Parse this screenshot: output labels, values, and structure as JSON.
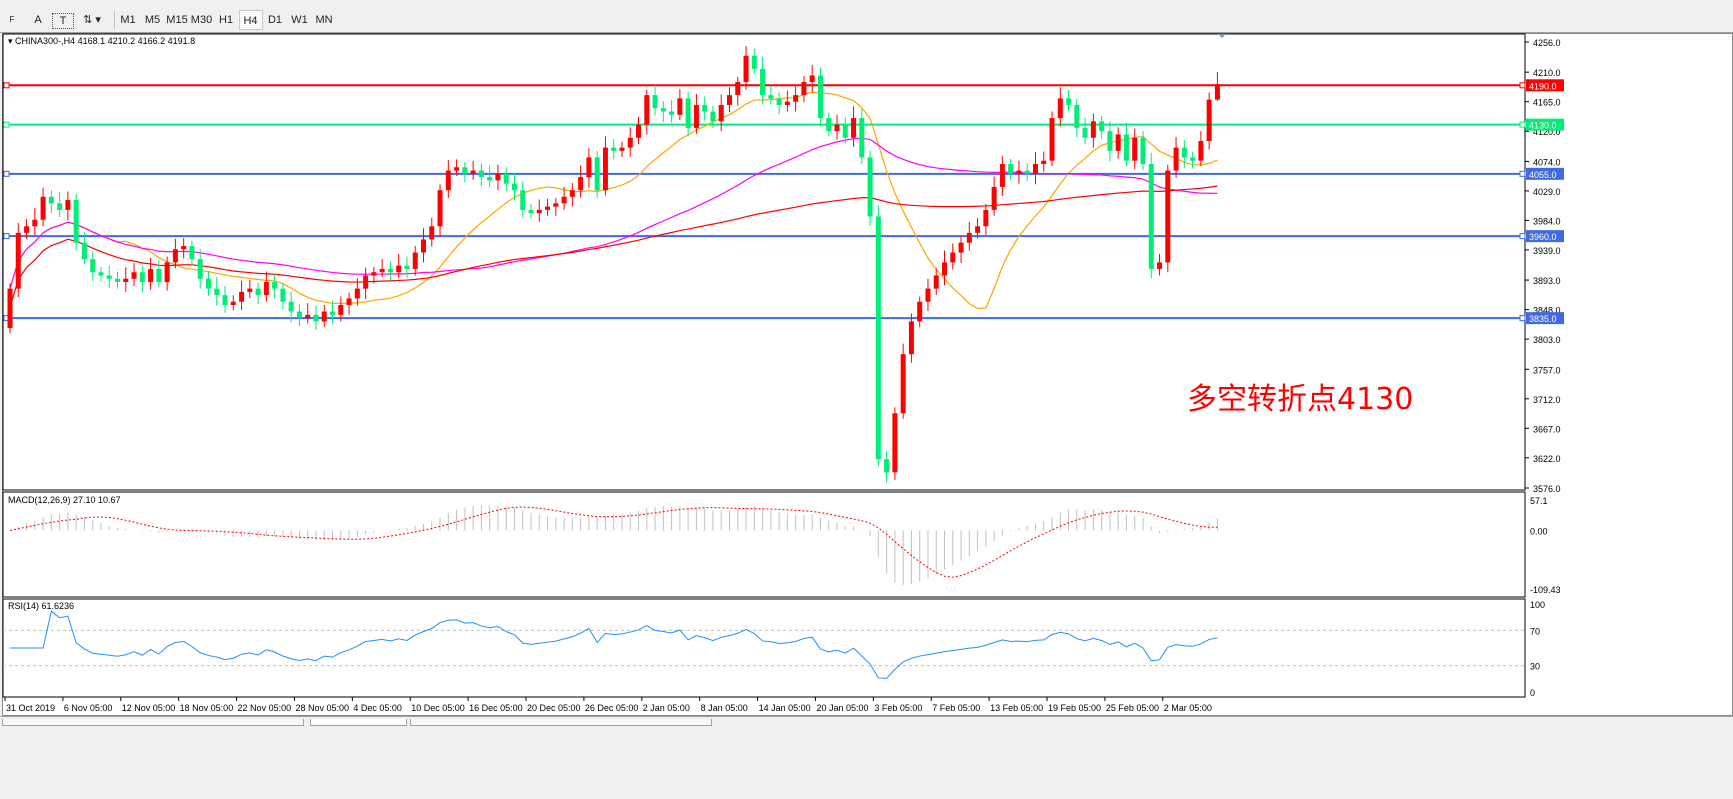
{
  "toolbar": {
    "tools": [
      {
        "name": "period-separators",
        "label": "F"
      },
      {
        "name": "text",
        "label": "A"
      },
      {
        "name": "text-label",
        "label": "T"
      },
      {
        "name": "arrows",
        "label": "⇅"
      }
    ],
    "timeframes": [
      "M1",
      "M5",
      "M15",
      "M30",
      "H1",
      "H4",
      "D1",
      "W1",
      "MN"
    ],
    "active_timeframe": "H4"
  },
  "chart": {
    "header": "CHINA300-,H4  4168.1 4210.2 4166.2 4191.8",
    "symbol": "CHINA300-",
    "timeframe": "H4",
    "last_bar": {
      "open": 4168.1,
      "high": 4210.2,
      "low": 4166.2,
      "close": 4191.8
    },
    "annotation": "多空转折点4130",
    "annotation_color": "#ff0000",
    "up_color": "#ff0000",
    "down_color": "#00ee76"
  },
  "chart_data": {
    "type": "candlestick",
    "price_axis_ticks": [
      "4256.0",
      "4210.0",
      "4165.0",
      "4120.0",
      "4074.0",
      "4029.0",
      "3984.0",
      "3939.0",
      "3893.0",
      "3848.0",
      "3803.0",
      "3757.0",
      "3712.0",
      "3667.0",
      "3622.0",
      "3576.0"
    ],
    "ylim": [
      3576,
      4256
    ],
    "time_axis_ticks": [
      "31 Oct 2019",
      "6 Nov 05:00",
      "12 Nov 05:00",
      "18 Nov 05:00",
      "22 Nov 05:00",
      "28 Nov 05:00",
      "4 Dec 05:00",
      "10 Dec 05:00",
      "16 Dec 05:00",
      "20 Dec 05:00",
      "26 Dec 05:00",
      "2 Jan 05:00",
      "8 Jan 05:00",
      "14 Jan 05:00",
      "20 Jan 05:00",
      "3 Feb 05:00",
      "7 Feb 05:00",
      "13 Feb 05:00",
      "19 Feb 05:00",
      "25 Feb 05:00",
      "2 Mar 05:00"
    ],
    "close": [
      3880,
      3965,
      3975,
      3985,
      4020,
      4010,
      4000,
      4015,
      3950,
      3925,
      3905,
      3900,
      3895,
      3890,
      3895,
      3905,
      3890,
      3910,
      3890,
      3920,
      3940,
      3945,
      3925,
      3895,
      3880,
      3870,
      3855,
      3860,
      3875,
      3880,
      3870,
      3890,
      3880,
      3860,
      3845,
      3835,
      3840,
      3830,
      3845,
      3840,
      3855,
      3865,
      3880,
      3900,
      3905,
      3910,
      3905,
      3915,
      3910,
      3935,
      3955,
      3975,
      4030,
      4060,
      4065,
      4055,
      4060,
      4050,
      4045,
      4055,
      4040,
      4030,
      4000,
      3995,
      4000,
      4005,
      4010,
      4020,
      4030,
      4050,
      4080,
      4030,
      4095,
      4090,
      4095,
      4110,
      4130,
      4175,
      4155,
      4150,
      4145,
      4170,
      4125,
      4160,
      4150,
      4135,
      4160,
      4175,
      4195,
      4235,
      4215,
      4175,
      4170,
      4160,
      4165,
      4175,
      4195,
      4205,
      4140,
      4120,
      4130,
      4110,
      4140,
      4080,
      3990,
      3620,
      3600,
      3690,
      3780,
      3830,
      3860,
      3880,
      3900,
      3920,
      3935,
      3950,
      3965,
      3975,
      4000,
      4035,
      4070,
      4055,
      4060,
      4055,
      4070,
      4075,
      4140,
      4170,
      4160,
      4125,
      4110,
      4135,
      4120,
      4090,
      4115,
      4075,
      4110,
      4070,
      3910,
      3920,
      4060,
      4095,
      4080,
      4075,
      4105,
      4168.1,
      4191.8
    ],
    "horizontal_lines": [
      {
        "price": 4190.0,
        "label": "4190.0",
        "color": "#ff0000"
      },
      {
        "price": 4130.0,
        "label": "4130.0",
        "color": "#00ee76"
      },
      {
        "price": 4055.0,
        "label": "4055.0",
        "color": "#4169e1"
      },
      {
        "price": 3960.0,
        "label": "3960.0",
        "color": "#4169e1"
      },
      {
        "price": 3835.0,
        "label": "3835.0",
        "color": "#4169e1"
      }
    ],
    "moving_averages": [
      {
        "color": "#ffa500"
      },
      {
        "color": "#ff00ff"
      },
      {
        "color": "#ff0000"
      }
    ],
    "macd": {
      "label": "MACD(12,26,9) 27.10 10.67",
      "axis_ticks": [
        "57.1",
        "0.00",
        "-109.43"
      ],
      "ylim": [
        -109.43,
        57.1
      ],
      "histogram_color": "#c0c0c0",
      "signal_color": "#ff0000"
    },
    "rsi": {
      "label": "RSI(14) 61.6236",
      "axis_ticks": [
        "100",
        "70",
        "30",
        "0"
      ],
      "levels": [
        70,
        30
      ],
      "line_color": "#1e90ff"
    }
  }
}
